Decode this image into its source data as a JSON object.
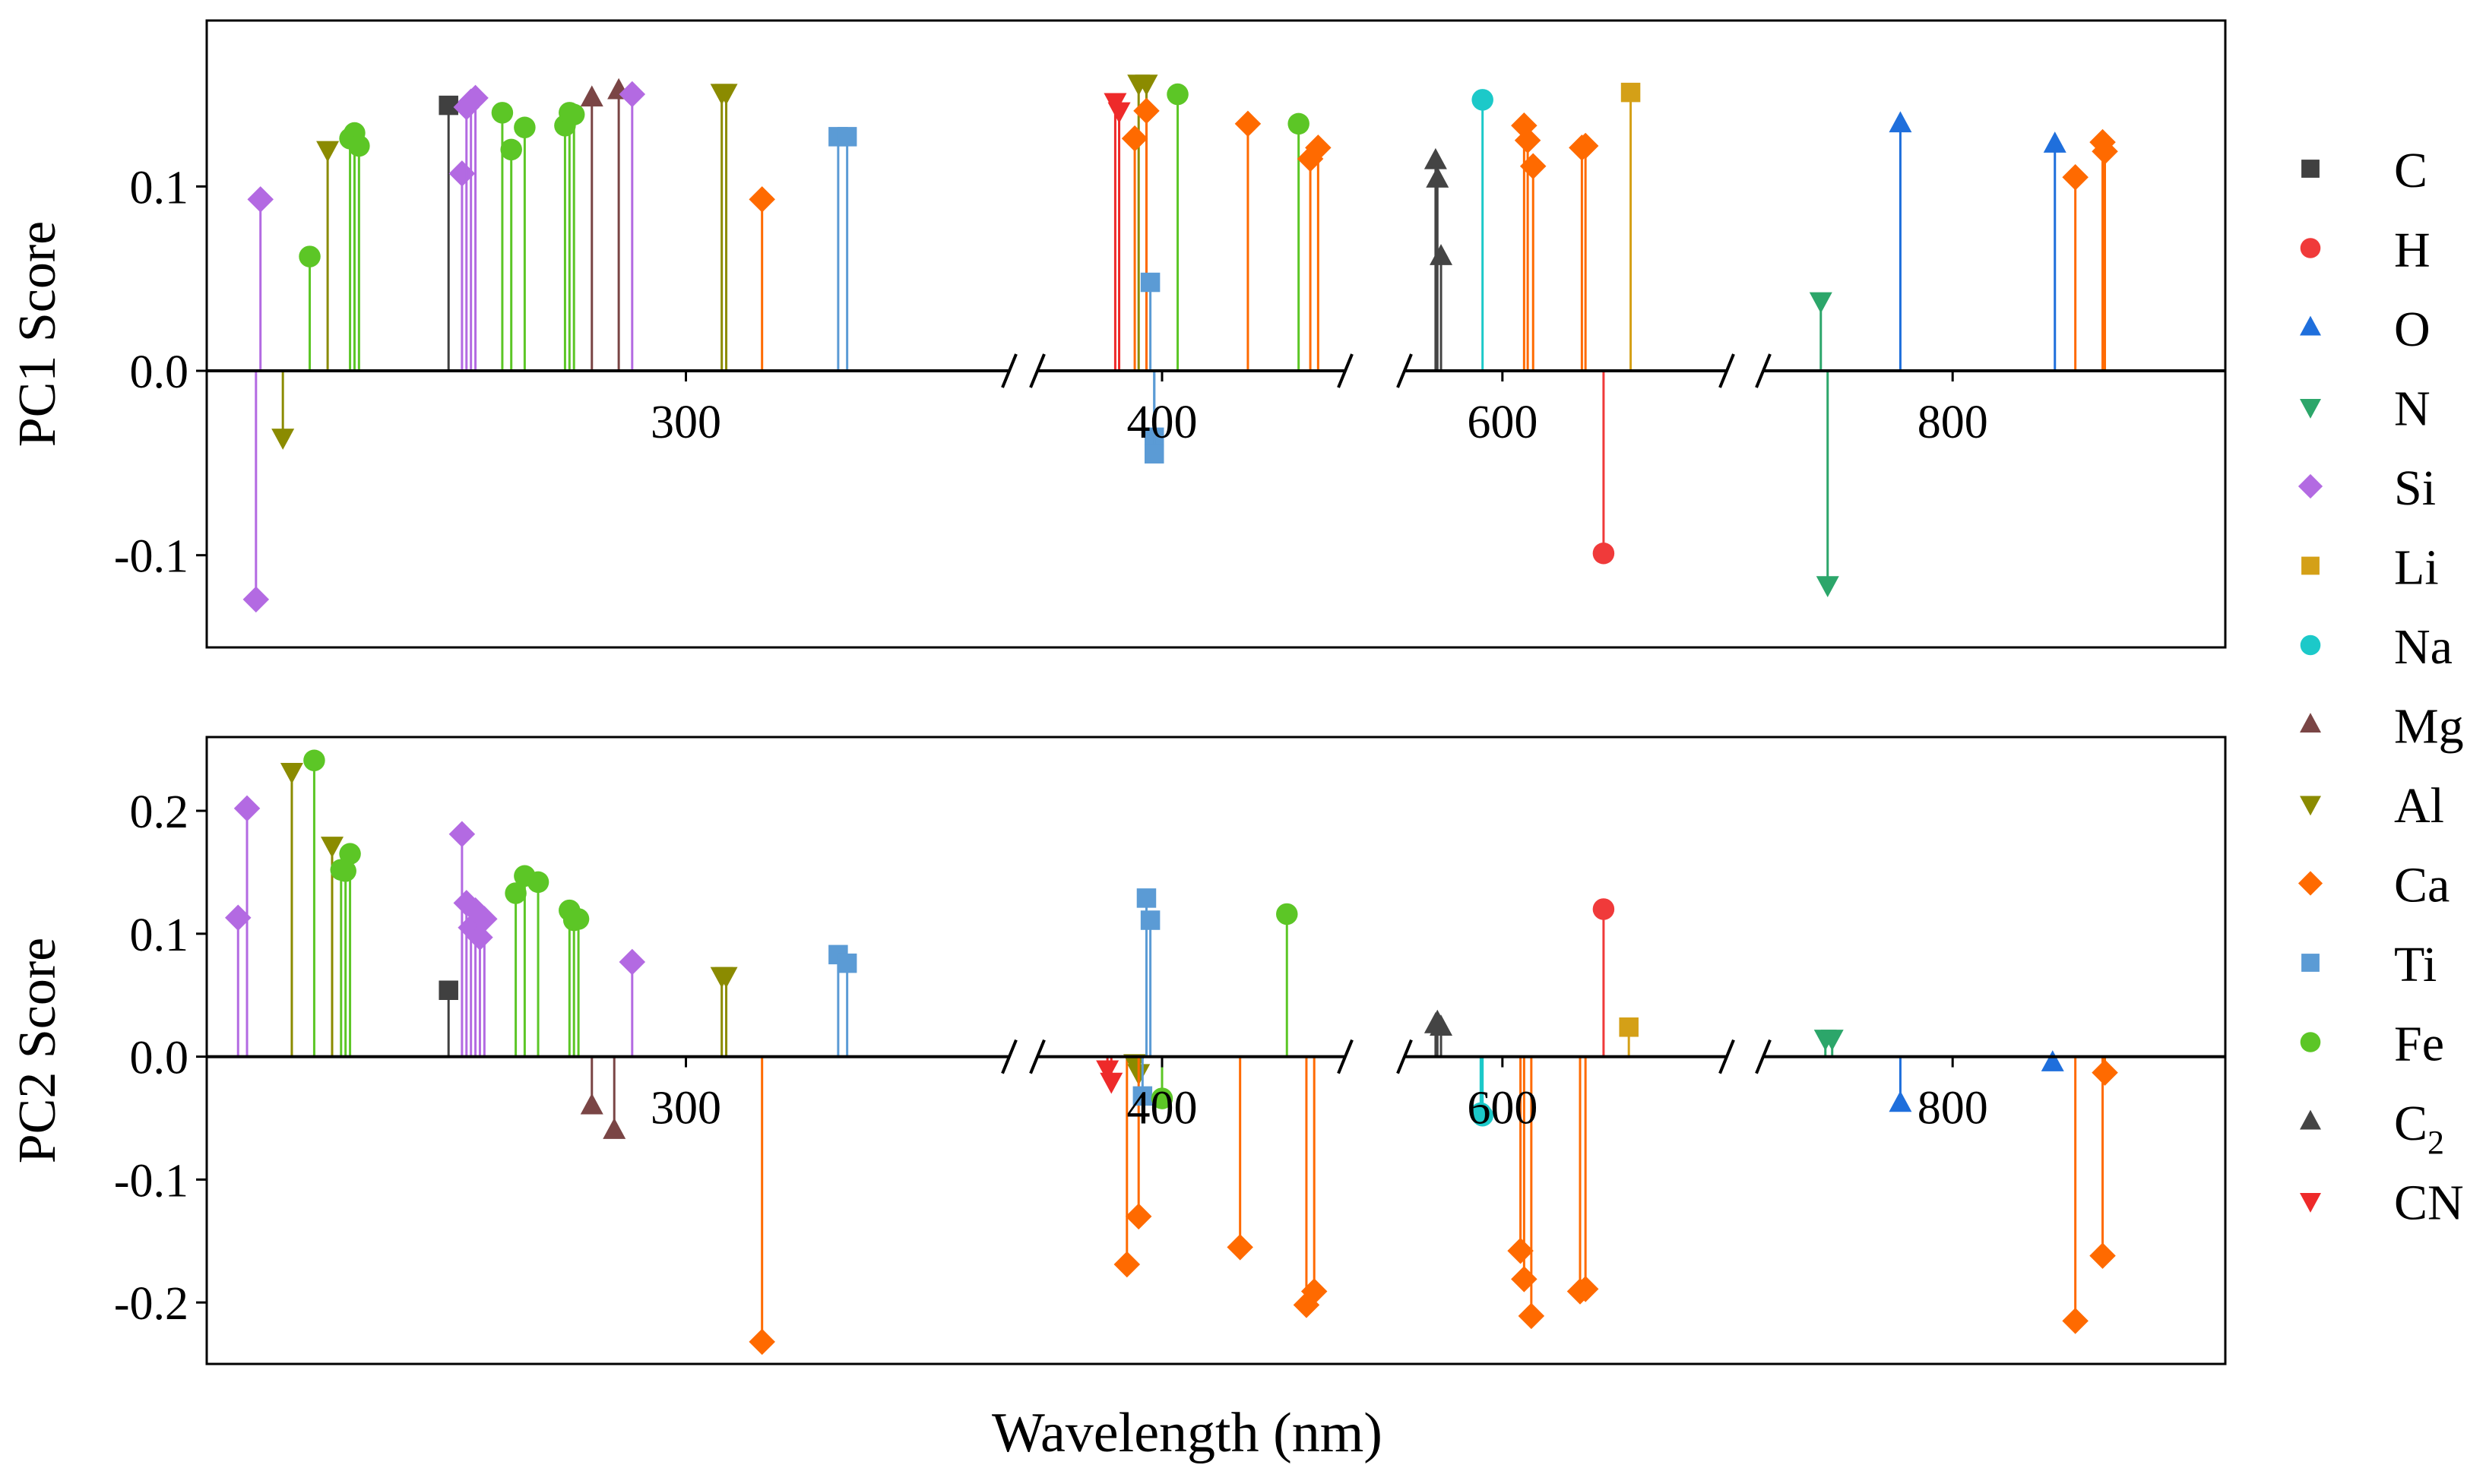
{
  "chart_data": {
    "type": "stem",
    "xlabel": "Wavelength (nm)",
    "x_segments": [
      {
        "range": [
          193,
          370
        ],
        "ticks": [
          300
        ]
      },
      {
        "range": [
          370,
          445
        ],
        "ticks": [
          400
        ]
      },
      {
        "range": [
          550,
          720
        ],
        "ticks": [
          600
        ]
      },
      {
        "range": [
          720,
          920
        ],
        "ticks": [
          800
        ]
      }
    ],
    "legend": [
      {
        "label": "C",
        "sub": "",
        "color": "#404040",
        "marker": "square"
      },
      {
        "label": "H",
        "sub": "",
        "color": "#f03a3a",
        "marker": "circle"
      },
      {
        "label": "O",
        "sub": "",
        "color": "#1f6fdc",
        "marker": "triangle-up"
      },
      {
        "label": "N",
        "sub": "",
        "color": "#2ca66a",
        "marker": "triangle-down"
      },
      {
        "label": "Si",
        "sub": "",
        "color": "#b36ae2",
        "marker": "diamond"
      },
      {
        "label": "Li",
        "sub": "",
        "color": "#d4a017",
        "marker": "square"
      },
      {
        "label": "Na",
        "sub": "",
        "color": "#1cc9c9",
        "marker": "circle"
      },
      {
        "label": "Mg",
        "sub": "",
        "color": "#7a4545",
        "marker": "triangle-up"
      },
      {
        "label": "Al",
        "sub": "",
        "color": "#8b8b00",
        "marker": "triangle-down"
      },
      {
        "label": "Ca",
        "sub": "",
        "color": "#ff6a00",
        "marker": "diamond"
      },
      {
        "label": "Ti",
        "sub": "",
        "color": "#5b9bd5",
        "marker": "square"
      },
      {
        "label": "Fe",
        "sub": "",
        "color": "#5cc626",
        "marker": "circle"
      },
      {
        "label": "C",
        "sub": "2",
        "color": "#444444",
        "marker": "triangle-up"
      },
      {
        "label": "CN",
        "sub": "",
        "color": "#ee2a2a",
        "marker": "triangle-down"
      }
    ],
    "panels": [
      {
        "ylabel": "PC1 Score",
        "ylim": [
          -0.15,
          0.19
        ],
        "yticks": [
          {
            "value": -0.1,
            "label": "-0.1"
          },
          {
            "value": 0.0,
            "label": "0.0"
          },
          {
            "value": 0.1,
            "label": "0.1"
          }
        ],
        "tick_labels": [
          "300",
          "400",
          "600",
          "800"
        ],
        "points": [
          {
            "el": "Si",
            "x": 205,
            "y": 0.093
          },
          {
            "el": "Si",
            "x": 204,
            "y": -0.124
          },
          {
            "el": "Al",
            "x": 210,
            "y": -0.036
          },
          {
            "el": "Fe",
            "x": 216,
            "y": 0.062
          },
          {
            "el": "Al",
            "x": 220,
            "y": 0.12
          },
          {
            "el": "Fe",
            "x": 225,
            "y": 0.126
          },
          {
            "el": "Fe",
            "x": 226,
            "y": 0.129
          },
          {
            "el": "Fe",
            "x": 227,
            "y": 0.122
          },
          {
            "el": "C",
            "x": 247,
            "y": 0.144
          },
          {
            "el": "Si",
            "x": 250,
            "y": 0.107
          },
          {
            "el": "Si",
            "x": 251,
            "y": 0.143
          },
          {
            "el": "Si",
            "x": 252,
            "y": 0.146
          },
          {
            "el": "Si",
            "x": 253,
            "y": 0.148
          },
          {
            "el": "Fe",
            "x": 259,
            "y": 0.14
          },
          {
            "el": "Fe",
            "x": 261,
            "y": 0.12
          },
          {
            "el": "Fe",
            "x": 264,
            "y": 0.132
          },
          {
            "el": "Fe",
            "x": 273,
            "y": 0.133
          },
          {
            "el": "Fe",
            "x": 274,
            "y": 0.14
          },
          {
            "el": "Fe",
            "x": 275,
            "y": 0.139
          },
          {
            "el": "Mg",
            "x": 279,
            "y": 0.148
          },
          {
            "el": "Mg",
            "x": 285,
            "y": 0.152
          },
          {
            "el": "Si",
            "x": 288,
            "y": 0.15
          },
          {
            "el": "Al",
            "x": 308,
            "y": 0.151
          },
          {
            "el": "Al",
            "x": 309,
            "y": 0.151
          },
          {
            "el": "Ca",
            "x": 317,
            "y": 0.093
          },
          {
            "el": "Ti",
            "x": 334,
            "y": 0.127
          },
          {
            "el": "Ti",
            "x": 336,
            "y": 0.127
          },
          {
            "el": "CN",
            "x": 388,
            "y": 0.146
          },
          {
            "el": "CN",
            "x": 389,
            "y": 0.141
          },
          {
            "el": "Al",
            "x": 394,
            "y": 0.156
          },
          {
            "el": "Al",
            "x": 396,
            "y": 0.156
          },
          {
            "el": "Ca",
            "x": 393,
            "y": 0.126
          },
          {
            "el": "Ca",
            "x": 396,
            "y": 0.141
          },
          {
            "el": "Ti",
            "x": 397,
            "y": 0.048
          },
          {
            "el": "Ti",
            "x": 398,
            "y": -0.036
          },
          {
            "el": "Ti",
            "x": 398,
            "y": -0.045
          },
          {
            "el": "Fe",
            "x": 404,
            "y": 0.15
          },
          {
            "el": "Ca",
            "x": 422,
            "y": 0.134
          },
          {
            "el": "Fe",
            "x": 435,
            "y": 0.134
          },
          {
            "el": "Ca",
            "x": 438,
            "y": 0.115
          },
          {
            "el": "Ca",
            "x": 440,
            "y": 0.121
          },
          {
            "el": "C2",
            "x": 563,
            "y": 0.114
          },
          {
            "el": "C2",
            "x": 564,
            "y": 0.104
          },
          {
            "el": "C2",
            "x": 566,
            "y": 0.062
          },
          {
            "el": "Na",
            "x": 589,
            "y": 0.147
          },
          {
            "el": "Ca",
            "x": 612,
            "y": 0.133
          },
          {
            "el": "Ca",
            "x": 614,
            "y": 0.125
          },
          {
            "el": "Ca",
            "x": 617,
            "y": 0.111
          },
          {
            "el": "Ca",
            "x": 644,
            "y": 0.121
          },
          {
            "el": "Ca",
            "x": 646,
            "y": 0.122
          },
          {
            "el": "H",
            "x": 656,
            "y": -0.099
          },
          {
            "el": "Li",
            "x": 671,
            "y": 0.151
          },
          {
            "el": "N",
            "x": 742,
            "y": 0.038
          },
          {
            "el": "N",
            "x": 745,
            "y": -0.116
          },
          {
            "el": "O",
            "x": 777,
            "y": 0.134
          },
          {
            "el": "O",
            "x": 845,
            "y": 0.123
          },
          {
            "el": "Ca",
            "x": 854,
            "y": 0.105
          },
          {
            "el": "Ca",
            "x": 866,
            "y": 0.124
          },
          {
            "el": "Ca",
            "x": 867,
            "y": 0.119
          }
        ]
      },
      {
        "ylabel": "PC2 Score",
        "ylim": [
          -0.25,
          0.26
        ],
        "yticks": [
          {
            "value": -0.2,
            "label": "-0.2"
          },
          {
            "value": -0.1,
            "label": "-0.1"
          },
          {
            "value": 0.0,
            "label": "0.0"
          },
          {
            "value": 0.1,
            "label": "0.1"
          },
          {
            "value": 0.2,
            "label": "0.2"
          }
        ],
        "tick_labels": [
          "300",
          "400",
          "600",
          "800"
        ],
        "points": [
          {
            "el": "Si",
            "x": 200,
            "y": 0.113
          },
          {
            "el": "Si",
            "x": 202,
            "y": 0.202
          },
          {
            "el": "Al",
            "x": 212,
            "y": 0.232
          },
          {
            "el": "Fe",
            "x": 217,
            "y": 0.241
          },
          {
            "el": "Al",
            "x": 221,
            "y": 0.172
          },
          {
            "el": "Fe",
            "x": 223,
            "y": 0.152
          },
          {
            "el": "Fe",
            "x": 224,
            "y": 0.151
          },
          {
            "el": "Fe",
            "x": 225,
            "y": 0.165
          },
          {
            "el": "C",
            "x": 247,
            "y": 0.054
          },
          {
            "el": "Si",
            "x": 250,
            "y": 0.181
          },
          {
            "el": "Si",
            "x": 251,
            "y": 0.125
          },
          {
            "el": "Si",
            "x": 252,
            "y": 0.105
          },
          {
            "el": "Si",
            "x": 253,
            "y": 0.119
          },
          {
            "el": "Si",
            "x": 254,
            "y": 0.097
          },
          {
            "el": "Si",
            "x": 255,
            "y": 0.112
          },
          {
            "el": "Fe",
            "x": 262,
            "y": 0.133
          },
          {
            "el": "Fe",
            "x": 264,
            "y": 0.147
          },
          {
            "el": "Fe",
            "x": 267,
            "y": 0.142
          },
          {
            "el": "Fe",
            "x": 274,
            "y": 0.119
          },
          {
            "el": "Fe",
            "x": 275,
            "y": 0.111
          },
          {
            "el": "Fe",
            "x": 276,
            "y": 0.112
          },
          {
            "el": "Mg",
            "x": 279,
            "y": -0.04
          },
          {
            "el": "Mg",
            "x": 284,
            "y": -0.06
          },
          {
            "el": "Si",
            "x": 288,
            "y": 0.077
          },
          {
            "el": "Al",
            "x": 308,
            "y": 0.066
          },
          {
            "el": "Al",
            "x": 309,
            "y": 0.066
          },
          {
            "el": "Ca",
            "x": 317,
            "y": -0.232
          },
          {
            "el": "Ti",
            "x": 334,
            "y": 0.083
          },
          {
            "el": "Ti",
            "x": 336,
            "y": 0.076
          },
          {
            "el": "CN",
            "x": 386,
            "y": -0.01
          },
          {
            "el": "CN",
            "x": 387,
            "y": -0.02
          },
          {
            "el": "Ca",
            "x": 391,
            "y": -0.169
          },
          {
            "el": "Al",
            "x": 393,
            "y": -0.005
          },
          {
            "el": "Al",
            "x": 394,
            "y": -0.013
          },
          {
            "el": "Ca",
            "x": 394,
            "y": -0.13
          },
          {
            "el": "Ti",
            "x": 395,
            "y": -0.032
          },
          {
            "el": "Ti",
            "x": 396,
            "y": 0.129
          },
          {
            "el": "Ti",
            "x": 397,
            "y": 0.111
          },
          {
            "el": "Fe",
            "x": 400,
            "y": -0.034
          },
          {
            "el": "Ca",
            "x": 420,
            "y": -0.155
          },
          {
            "el": "Fe",
            "x": 432,
            "y": 0.116
          },
          {
            "el": "Ca",
            "x": 437,
            "y": -0.202
          },
          {
            "el": "Ca",
            "x": 439,
            "y": -0.191
          },
          {
            "el": "C2",
            "x": 563,
            "y": 0.026
          },
          {
            "el": "C2",
            "x": 564,
            "y": 0.028
          },
          {
            "el": "C2",
            "x": 566,
            "y": 0.024
          },
          {
            "el": "Na",
            "x": 588,
            "y": -0.046
          },
          {
            "el": "Na",
            "x": 589,
            "y": -0.048
          },
          {
            "el": "Ca",
            "x": 610,
            "y": -0.158
          },
          {
            "el": "Ca",
            "x": 612,
            "y": -0.181
          },
          {
            "el": "Ca",
            "x": 616,
            "y": -0.211
          },
          {
            "el": "Ca",
            "x": 643,
            "y": -0.191
          },
          {
            "el": "Ca",
            "x": 646,
            "y": -0.189
          },
          {
            "el": "H",
            "x": 656,
            "y": 0.12
          },
          {
            "el": "Li",
            "x": 670,
            "y": 0.024
          },
          {
            "el": "N",
            "x": 744,
            "y": 0.015
          },
          {
            "el": "N",
            "x": 747,
            "y": 0.015
          },
          {
            "el": "O",
            "x": 777,
            "y": -0.038
          },
          {
            "el": "O",
            "x": 844,
            "y": -0.005
          },
          {
            "el": "Ca",
            "x": 854,
            "y": -0.215
          },
          {
            "el": "Ca",
            "x": 866,
            "y": -0.162
          },
          {
            "el": "Ca",
            "x": 867,
            "y": -0.013
          }
        ]
      }
    ]
  }
}
